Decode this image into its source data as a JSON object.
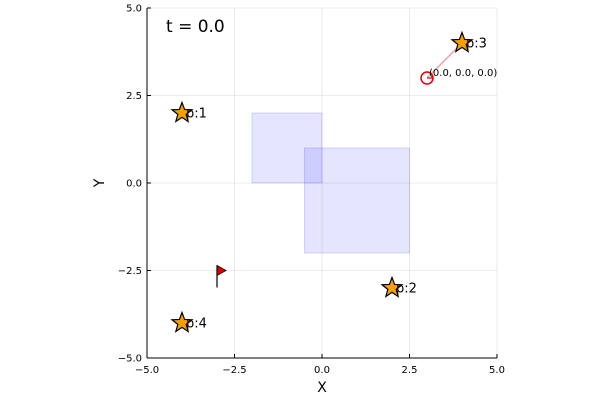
{
  "chart_data": {
    "type": "scatter",
    "time_label": "t = 0.0",
    "xlabel": "X",
    "ylabel": "Y",
    "xlim": [
      -5,
      5
    ],
    "ylim": [
      -5,
      5
    ],
    "xticks": [
      -5,
      -2.5,
      0,
      2.5,
      5
    ],
    "xtick_labels": [
      "−5.0",
      "−2.5",
      "0.0",
      "2.5",
      "5.0"
    ],
    "yticks": [
      -5,
      -2.5,
      0,
      2.5,
      5
    ],
    "ytick_labels": [
      "−5.0",
      "−2.5",
      "0.0",
      "2.5",
      "5.0"
    ],
    "grid": true,
    "obstacles": [
      {
        "x0": -2,
        "x1": 0,
        "y0": 0,
        "y1": 2
      },
      {
        "x0": -0.5,
        "x1": 2.5,
        "y0": -2,
        "y1": 1
      }
    ],
    "obstacle_color": "#0000ff",
    "points": [
      {
        "x": -4,
        "y": 2,
        "label": "p:1"
      },
      {
        "x": 2,
        "y": -3,
        "label": "p:2"
      },
      {
        "x": 4,
        "y": 4,
        "label": "p:3"
      },
      {
        "x": -4,
        "y": -4,
        "label": "p:4"
      }
    ],
    "point_color": "#f5a000",
    "flag": {
      "x": -3,
      "y": -2.5,
      "color": "#e00000"
    },
    "agent": {
      "x": 3,
      "y": 3,
      "state_label": "(0.0, 0.0, 0.0)",
      "color": "#e00000"
    },
    "agent_link_color": "#f0a0a0"
  }
}
